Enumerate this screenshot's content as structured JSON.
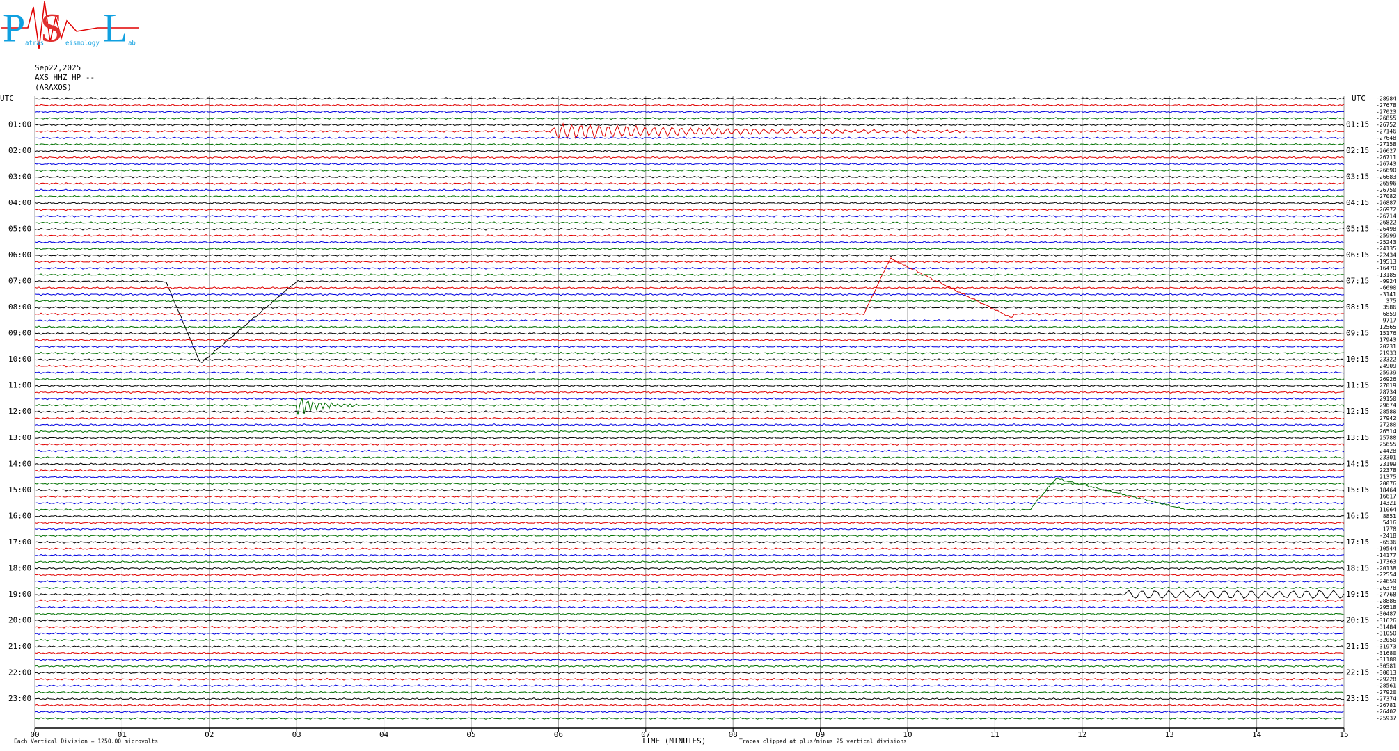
{
  "logo": {
    "p": "P",
    "s": "S",
    "l": "L",
    "atras": "atras",
    "eismology": "eismology",
    "ab": "ab"
  },
  "header": {
    "date": "Sep22,2025",
    "channel": "AXS HHZ HP --",
    "station": "(ARAXOS)"
  },
  "chart_data": {
    "type": "helicorder",
    "left_axis_title": "UTC",
    "right_axis_title": "UTC",
    "hours_left": [
      "01:00",
      "02:00",
      "03:00",
      "04:00",
      "05:00",
      "06:00",
      "07:00",
      "08:00",
      "09:00",
      "10:00",
      "11:00",
      "12:00",
      "13:00",
      "14:00",
      "15:00",
      "16:00",
      "17:00",
      "18:00",
      "19:00",
      "20:00",
      "21:00",
      "22:00",
      "23:00"
    ],
    "hours_right": [
      "01:15",
      "02:15",
      "03:15",
      "04:15",
      "05:15",
      "06:15",
      "07:15",
      "08:15",
      "09:15",
      "10:15",
      "11:15",
      "12:15",
      "13:15",
      "14:15",
      "15:15",
      "16:15",
      "17:15",
      "18:15",
      "19:15",
      "20:15",
      "21:15",
      "22:15",
      "23:15"
    ],
    "trace_offsets": [
      -28984,
      -27678,
      -27023,
      -26855,
      -26752,
      -27146,
      -27648,
      -27158,
      -26627,
      -26711,
      -26743,
      -26690,
      -26683,
      -26596,
      -26750,
      -27082,
      -26887,
      -26972,
      -26714,
      -26822,
      -26498,
      -25999,
      -25243,
      -24135,
      -22434,
      -19513,
      -16470,
      -13185,
      -9924,
      -6690,
      -3141,
      375,
      3586,
      6859,
      9717,
      12565,
      15176,
      17943,
      20231,
      21933,
      23322,
      24909,
      25939,
      26926,
      27019,
      28734,
      29150,
      29674,
      28580,
      27942,
      27280,
      26514,
      25780,
      25655,
      24428,
      23301,
      23199,
      22378,
      21375,
      20076,
      18464,
      16617,
      14321,
      11064,
      8851,
      5416,
      1778,
      -2418,
      -6536,
      -10544,
      -14177,
      -17363,
      -20138,
      -22554,
      -24659,
      -26378,
      -27768,
      -28886,
      -29518,
      -30487,
      -31626,
      -31484,
      -31050,
      -32050,
      -31973,
      -31680,
      -31180,
      -30581,
      -30013,
      -29228,
      -28561,
      -27920,
      -27374,
      -26781,
      -26402,
      -25937
    ],
    "trace_colors": [
      "#000000",
      "#e00000",
      "#0000e0",
      "#007000"
    ],
    "xlim": [
      0,
      15
    ],
    "xticks": [
      {
        "value": 0,
        "label": "00"
      },
      {
        "value": 1,
        "label": "01"
      },
      {
        "value": 2,
        "label": "02"
      },
      {
        "value": 3,
        "label": "03"
      },
      {
        "value": 4,
        "label": "04"
      },
      {
        "value": 5,
        "label": "05"
      },
      {
        "value": 6,
        "label": "06"
      },
      {
        "value": 7,
        "label": "07"
      },
      {
        "value": 8,
        "label": "08"
      },
      {
        "value": 9,
        "label": "09"
      },
      10,
      11,
      12,
      13,
      14,
      15
    ],
    "xlabel": "TIME (MINUTES)",
    "scale_note": "Each Vertical Division = 1250.00 microvolts",
    "clip_note": "Traces clipped at plus/minus 25 vertical divisions",
    "grid": true
  }
}
